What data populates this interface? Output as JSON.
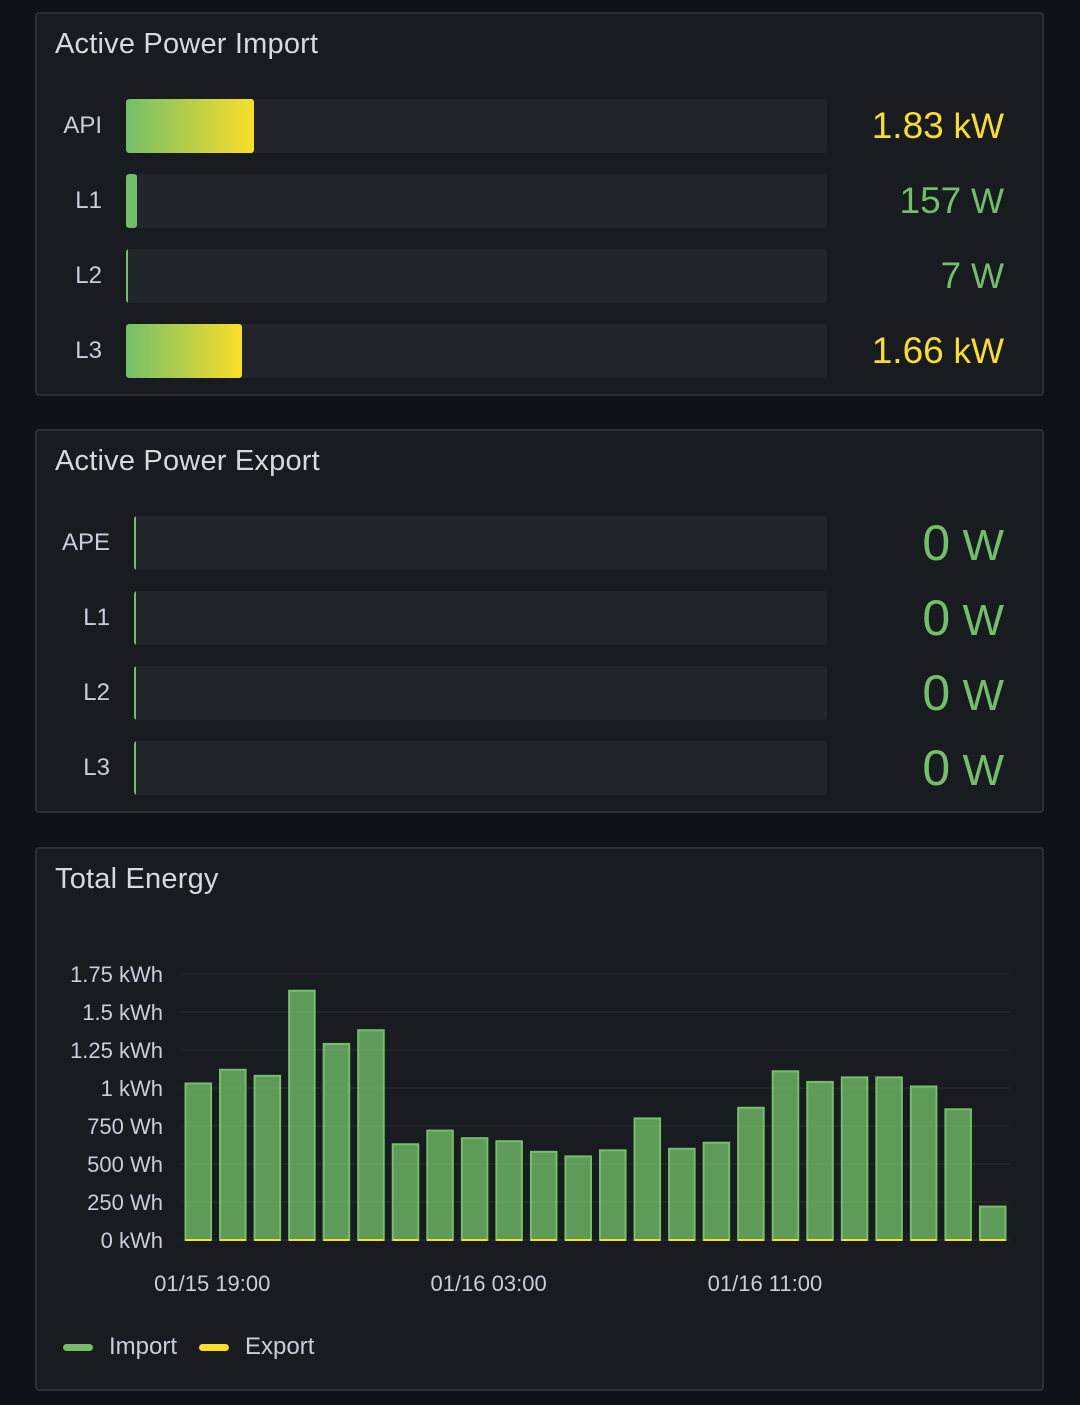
{
  "import_panel": {
    "title": "Active Power Import",
    "max_w": 10000,
    "rows": [
      {
        "label": "API",
        "value": 1830,
        "num": "1.83",
        "unit": "kW",
        "color": "#fade2a"
      },
      {
        "label": "L1",
        "value": 157,
        "num": "157",
        "unit": "W",
        "color": "#73bf69"
      },
      {
        "label": "L2",
        "value": 7,
        "num": "7",
        "unit": "W",
        "color": "#73bf69"
      },
      {
        "label": "L3",
        "value": 1660,
        "num": "1.66",
        "unit": "kW",
        "color": "#fade2a"
      }
    ]
  },
  "export_panel": {
    "title": "Active Power Export",
    "max_w": 10000,
    "rows": [
      {
        "label": "APE",
        "value": 0,
        "num": "0",
        "unit": "W",
        "color": "#73bf69"
      },
      {
        "label": "L1",
        "value": 0,
        "num": "0",
        "unit": "W",
        "color": "#73bf69"
      },
      {
        "label": "L2",
        "value": 0,
        "num": "0",
        "unit": "W",
        "color": "#73bf69"
      },
      {
        "label": "L3",
        "value": 0,
        "num": "0",
        "unit": "W",
        "color": "#73bf69"
      }
    ]
  },
  "energy_panel": {
    "title": "Total Energy",
    "chart_data": {
      "type": "bar",
      "ylim": [
        0,
        1.75
      ],
      "ytick_values": [
        0,
        0.25,
        0.5,
        0.75,
        1,
        1.25,
        1.5,
        1.75
      ],
      "ytick_labels": [
        "0 kWh",
        "250 Wh",
        "500 Wh",
        "750 Wh",
        "1 kWh",
        "1.25 kWh",
        "1.5 kWh",
        "1.75 kWh"
      ],
      "bar_count": 24,
      "xtick_labels": [
        {
          "index": 0,
          "label": "01/15 19:00"
        },
        {
          "index": 8,
          "label": "01/16 03:00"
        },
        {
          "index": 16,
          "label": "01/16 11:00"
        }
      ],
      "series": [
        {
          "name": "Import",
          "color": "#73bf69",
          "values": [
            1.03,
            1.12,
            1.08,
            1.64,
            1.29,
            1.38,
            0.63,
            0.72,
            0.67,
            0.65,
            0.58,
            0.55,
            0.59,
            0.8,
            0.6,
            0.64,
            0.87,
            1.11,
            1.04,
            1.07,
            1.07,
            1.01,
            0.86,
            0.22
          ]
        },
        {
          "name": "Export",
          "color": "#fade2a",
          "values": [
            0,
            0,
            0,
            0,
            0,
            0,
            0,
            0,
            0,
            0,
            0,
            0,
            0,
            0,
            0,
            0,
            0,
            0,
            0,
            0,
            0,
            0,
            0,
            0
          ]
        }
      ],
      "legend": "bottom-left"
    }
  }
}
